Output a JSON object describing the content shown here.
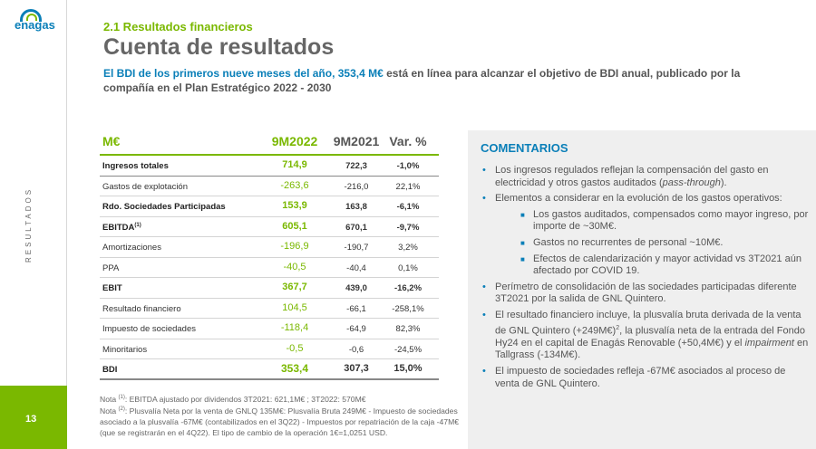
{
  "sidebar": {
    "logo": "enagas",
    "section_label": "RESULTADOS",
    "page_number": "13"
  },
  "header": {
    "section": "2.1 Resultados financieros",
    "title": "Cuenta de resultados",
    "subtitle_highlight": "El BDI de los primeros nueve meses del año, 353,4 M€",
    "subtitle_rest": " está en línea para alcanzar el objetivo de BDI anual, publicado por la compañía en el Plan Estratégico 2022 - 2030"
  },
  "table": {
    "headers": [
      "M€",
      "9M2022",
      "9M2021",
      "Var. %"
    ],
    "rows": [
      {
        "label": "Ingresos totales",
        "a": "714,9",
        "b": "722,3",
        "c": "-1,0%",
        "bold": true
      },
      {
        "label": "Gastos de explotación",
        "a": "-263,6",
        "b": "-216,0",
        "c": "22,1%",
        "bold": false
      },
      {
        "label": "Rdo. Sociedades Participadas",
        "a": "153,9",
        "b": "163,8",
        "c": "-6,1%",
        "bold": true
      },
      {
        "label": "EBITDA",
        "sup": "(1)",
        "a": "605,1",
        "b": "670,1",
        "c": "-9,7%",
        "bold": true
      },
      {
        "label": "Amortizaciones",
        "a": "-196,9",
        "b": "-190,7",
        "c": "3,2%",
        "bold": false
      },
      {
        "label": "PPA",
        "a": "-40,5",
        "b": "-40,4",
        "c": "0,1%",
        "bold": false
      },
      {
        "label": "EBIT",
        "a": "367,7",
        "b": "439,0",
        "c": "-16,2%",
        "bold": true
      },
      {
        "label": "Resultado financiero",
        "a": "104,5",
        "b": "-66,1",
        "c": "-258,1%",
        "bold": false
      },
      {
        "label": "Impuesto de sociedades",
        "a": "-118,4",
        "b": "-64,9",
        "c": "82,3%",
        "bold": false
      },
      {
        "label": "Minoritarios",
        "a": "-0,5",
        "b": "-0,6",
        "c": "-24,5%",
        "bold": false
      },
      {
        "label": "BDI",
        "a": "353,4",
        "b": "307,3",
        "c": "15,0%",
        "bold": true
      }
    ]
  },
  "notes": {
    "n1_prefix": "Nota ",
    "n1_sup": "(1)",
    "n1_text": ": EBITDA ajustado por dividendos 3T2021: 621,1M€ ; 3T2022: 570M€",
    "n2_prefix": "Nota ",
    "n2_sup": "(2)",
    "n2_text": ": Plusvalía Neta por la venta de GNLQ 135M€: Plusvalía Bruta 249M€ - Impuesto de sociedades asociado a la plusvalía -67M€ (contabilizados en el 3Q22) - Impuestos por repatriación de la caja -47M€ (que se registrarán en el 4Q22). El tipo de cambio de la operación 1€=1,0251 USD."
  },
  "comments": {
    "title": "COMENTARIOS",
    "c1_a": "Los ingresos regulados reflejan la compensación del gasto en electricidad y otros gastos auditados (",
    "c1_it": "pass-through",
    "c1_b": ").",
    "c2": "Elementos a considerar en la evolución de los gastos operativos:",
    "s1": "Los gastos auditados, compensados como mayor ingreso, por importe de ~30M€.",
    "s2": "Gastos no recurrentes de personal ~10M€.",
    "s3": "Efectos de calendarización y mayor actividad vs 3T2021 aún afectado por COVID 19.",
    "c3": "Perímetro de consolidación de las sociedades participadas diferente 3T2021 por la salida de GNL Quintero.",
    "c4_a": "El resultado financiero incluye, la plusvalía bruta derivada de la venta de GNL Quintero (+249M€)",
    "c4_sup": "2",
    "c4_b": ", la plusvalía neta de la entrada del Fondo Hy24 en el capital de Enagás Renovable (+50,4M€) y el ",
    "c4_it": "impairment",
    "c4_c": " en Tallgrass (-134M€).",
    "c5": "El impuesto de sociedades refleja -67M€ asociados al proceso de venta de GNL Quintero."
  },
  "colors": {
    "brand_blue": "#0a7fb8",
    "brand_green": "#7ab800",
    "panel_bg": "#efefef"
  }
}
